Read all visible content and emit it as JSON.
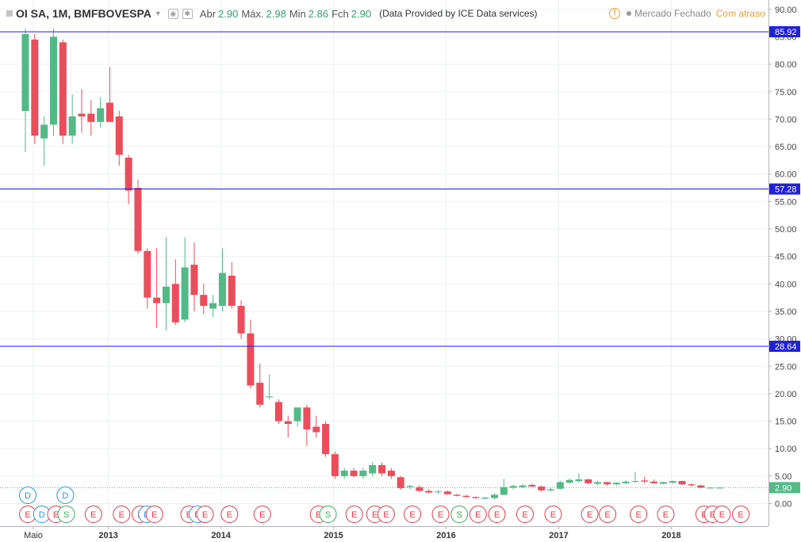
{
  "header": {
    "symbol_title": "OI SA, 1M, BMFBOVESPA",
    "open_label": "Abr",
    "open_value": "2.90",
    "high_label": "Máx.",
    "high_value": "2.98",
    "low_label": "Min",
    "low_value": "2.86",
    "close_label": "Fch",
    "close_value": "2.90",
    "provider": "(Data Provided by ICE Data services)"
  },
  "status": {
    "icon": "!",
    "closed": "Mercado Fechado",
    "delay": "Com atraso"
  },
  "colors": {
    "up": "#53b987",
    "down": "#eb4d5c",
    "hline": "#1a1adb",
    "badge": "#2121d6",
    "last": "#53b987"
  },
  "chart_data": {
    "type": "candlestick",
    "title": "OI SA, 1M, BMFBOVESPA",
    "xlabel": "",
    "ylabel": "",
    "ylim": [
      -3.5,
      91
    ],
    "y_ticks": [
      "0.00",
      "5.00",
      "10.00",
      "15.00",
      "20.00",
      "25.00",
      "30.00",
      "35.00",
      "40.00",
      "45.00",
      "50.00",
      "55.00",
      "60.00",
      "65.00",
      "70.00",
      "75.00",
      "80.00",
      "85.00",
      "90.00"
    ],
    "x_labels": [
      {
        "label": "Maio",
        "index": 0
      },
      {
        "label": "2013",
        "index": 8
      },
      {
        "label": "2014",
        "index": 20
      },
      {
        "label": "2015",
        "index": 32
      },
      {
        "label": "2016",
        "index": 44
      },
      {
        "label": "2017",
        "index": 56
      },
      {
        "label": "2018",
        "index": 68
      }
    ],
    "candles": [
      {
        "o": 71.5,
        "h": 86.5,
        "l": 64.0,
        "c": 85.5
      },
      {
        "o": 84.5,
        "h": 85.5,
        "l": 65.5,
        "c": 67.0
      },
      {
        "o": 66.5,
        "h": 70.5,
        "l": 61.5,
        "c": 69.0
      },
      {
        "o": 69.0,
        "h": 86.5,
        "l": 67.0,
        "c": 85.0
      },
      {
        "o": 84.0,
        "h": 84.5,
        "l": 65.5,
        "c": 67.0
      },
      {
        "o": 67.0,
        "h": 74.5,
        "l": 65.5,
        "c": 70.5
      },
      {
        "o": 71.0,
        "h": 75.5,
        "l": 67.5,
        "c": 70.5
      },
      {
        "o": 71.0,
        "h": 73.5,
        "l": 67.0,
        "c": 69.5
      },
      {
        "o": 69.5,
        "h": 74.0,
        "l": 68.5,
        "c": 72.0
      },
      {
        "o": 73.0,
        "h": 79.5,
        "l": 70.0,
        "c": 69.5
      },
      {
        "o": 70.5,
        "h": 71.5,
        "l": 61.5,
        "c": 63.5
      },
      {
        "o": 63.0,
        "h": 63.5,
        "l": 54.5,
        "c": 57.0
      },
      {
        "o": 57.5,
        "h": 59.0,
        "l": 45.5,
        "c": 46.0
      },
      {
        "o": 46.0,
        "h": 46.5,
        "l": 35.5,
        "c": 37.5
      },
      {
        "o": 37.5,
        "h": 46.5,
        "l": 32.0,
        "c": 36.5
      },
      {
        "o": 36.5,
        "h": 48.5,
        "l": 31.5,
        "c": 39.5
      },
      {
        "o": 40.0,
        "h": 44.5,
        "l": 32.5,
        "c": 33.0
      },
      {
        "o": 33.5,
        "h": 48.5,
        "l": 33.0,
        "c": 43.0
      },
      {
        "o": 43.5,
        "h": 47.5,
        "l": 35.0,
        "c": 38.0
      },
      {
        "o": 38.0,
        "h": 40.0,
        "l": 34.5,
        "c": 36.0
      },
      {
        "o": 35.5,
        "h": 38.0,
        "l": 34.0,
        "c": 36.5
      },
      {
        "o": 36.0,
        "h": 46.5,
        "l": 35.0,
        "c": 42.0
      },
      {
        "o": 41.5,
        "h": 44.0,
        "l": 35.5,
        "c": 36.0
      },
      {
        "o": 36.0,
        "h": 37.0,
        "l": 30.0,
        "c": 31.0
      },
      {
        "o": 31.0,
        "h": 33.5,
        "l": 21.0,
        "c": 21.5
      },
      {
        "o": 22.0,
        "h": 25.5,
        "l": 17.5,
        "c": 18.0
      },
      {
        "o": 19.5,
        "h": 23.5,
        "l": 19.0,
        "c": 19.5
      },
      {
        "o": 18.5,
        "h": 19.0,
        "l": 14.5,
        "c": 15.0
      },
      {
        "o": 15.0,
        "h": 16.0,
        "l": 12.0,
        "c": 14.5
      },
      {
        "o": 15.0,
        "h": 17.5,
        "l": 14.0,
        "c": 17.5
      },
      {
        "o": 17.5,
        "h": 18.0,
        "l": 10.5,
        "c": 13.5
      },
      {
        "o": 14.0,
        "h": 16.0,
        "l": 12.0,
        "c": 13.0
      },
      {
        "o": 14.5,
        "h": 15.0,
        "l": 8.5,
        "c": 9.0
      },
      {
        "o": 9.0,
        "h": 9.5,
        "l": 4.5,
        "c": 5.0
      },
      {
        "o": 5.0,
        "h": 6.5,
        "l": 4.5,
        "c": 6.0
      },
      {
        "o": 6.0,
        "h": 6.5,
        "l": 4.8,
        "c": 5.0
      },
      {
        "o": 5.0,
        "h": 6.5,
        "l": 4.5,
        "c": 6.0
      },
      {
        "o": 5.5,
        "h": 7.5,
        "l": 5.0,
        "c": 7.0
      },
      {
        "o": 7.0,
        "h": 7.5,
        "l": 5.0,
        "c": 5.5
      },
      {
        "o": 6.0,
        "h": 6.5,
        "l": 4.5,
        "c": 5.0
      },
      {
        "o": 4.8,
        "h": 5.0,
        "l": 2.5,
        "c": 2.8
      },
      {
        "o": 3.0,
        "h": 3.5,
        "l": 2.6,
        "c": 3.2
      },
      {
        "o": 3.0,
        "h": 3.3,
        "l": 2.1,
        "c": 2.3
      },
      {
        "o": 2.3,
        "h": 2.6,
        "l": 1.9,
        "c": 2.0
      },
      {
        "o": 2.1,
        "h": 2.5,
        "l": 1.8,
        "c": 2.2
      },
      {
        "o": 2.2,
        "h": 2.4,
        "l": 1.6,
        "c": 1.7
      },
      {
        "o": 1.6,
        "h": 1.8,
        "l": 1.3,
        "c": 1.4
      },
      {
        "o": 1.4,
        "h": 1.6,
        "l": 1.1,
        "c": 1.2
      },
      {
        "o": 1.2,
        "h": 1.3,
        "l": 0.9,
        "c": 1.0
      },
      {
        "o": 0.9,
        "h": 1.2,
        "l": 0.8,
        "c": 1.1
      },
      {
        "o": 1.0,
        "h": 1.9,
        "l": 0.8,
        "c": 1.6
      },
      {
        "o": 1.6,
        "h": 4.5,
        "l": 1.5,
        "c": 3.0
      },
      {
        "o": 2.9,
        "h": 3.4,
        "l": 2.6,
        "c": 3.2
      },
      {
        "o": 3.0,
        "h": 3.6,
        "l": 2.8,
        "c": 3.3
      },
      {
        "o": 3.4,
        "h": 3.6,
        "l": 3.0,
        "c": 3.1
      },
      {
        "o": 3.1,
        "h": 3.3,
        "l": 2.2,
        "c": 2.4
      },
      {
        "o": 2.4,
        "h": 2.9,
        "l": 2.2,
        "c": 2.6
      },
      {
        "o": 2.7,
        "h": 4.2,
        "l": 2.5,
        "c": 3.9
      },
      {
        "o": 3.8,
        "h": 4.6,
        "l": 3.6,
        "c": 4.3
      },
      {
        "o": 4.1,
        "h": 5.5,
        "l": 3.8,
        "c": 4.4
      },
      {
        "o": 4.4,
        "h": 4.5,
        "l": 3.5,
        "c": 3.7
      },
      {
        "o": 3.6,
        "h": 4.2,
        "l": 3.3,
        "c": 3.9
      },
      {
        "o": 3.9,
        "h": 4.0,
        "l": 3.2,
        "c": 3.5
      },
      {
        "o": 3.5,
        "h": 3.9,
        "l": 3.3,
        "c": 3.8
      },
      {
        "o": 3.7,
        "h": 4.3,
        "l": 3.5,
        "c": 4.0
      },
      {
        "o": 4.0,
        "h": 5.8,
        "l": 3.8,
        "c": 4.1
      },
      {
        "o": 4.2,
        "h": 4.9,
        "l": 3.7,
        "c": 4.0
      },
      {
        "o": 4.0,
        "h": 4.4,
        "l": 3.6,
        "c": 3.7
      },
      {
        "o": 3.6,
        "h": 4.0,
        "l": 3.5,
        "c": 3.9
      },
      {
        "o": 3.8,
        "h": 4.2,
        "l": 3.6,
        "c": 4.1
      },
      {
        "o": 4.1,
        "h": 4.2,
        "l": 3.4,
        "c": 3.5
      },
      {
        "o": 3.5,
        "h": 3.7,
        "l": 3.1,
        "c": 3.3
      },
      {
        "o": 3.3,
        "h": 3.4,
        "l": 2.8,
        "c": 2.9
      },
      {
        "o": 2.9,
        "h": 3.0,
        "l": 2.8,
        "c": 2.9
      },
      {
        "o": 2.9,
        "h": 2.98,
        "l": 2.86,
        "c": 2.9
      }
    ],
    "horizontal_lines": [
      {
        "value": 85.92,
        "label": "85.92"
      },
      {
        "value": 57.28,
        "label": "57.28"
      },
      {
        "value": 28.64,
        "label": "28.64"
      }
    ],
    "last_price": {
      "value": 2.9,
      "label": "2.90"
    },
    "event_markers": [
      {
        "index": 0,
        "letter": "D",
        "row": 0
      },
      {
        "index": 4,
        "letter": "D",
        "row": 0
      },
      {
        "index": 0,
        "letter": "E",
        "row": 1
      },
      {
        "index": 1.5,
        "letter": "D",
        "row": 1
      },
      {
        "index": 3,
        "letter": "E",
        "row": 1
      },
      {
        "index": 4.1,
        "letter": "S",
        "row": 1
      },
      {
        "index": 7,
        "letter": "E",
        "row": 1
      },
      {
        "index": 10,
        "letter": "E",
        "row": 1
      },
      {
        "index": 12,
        "letter": "E",
        "row": 1
      },
      {
        "index": 12.7,
        "letter": "D",
        "row": 1
      },
      {
        "index": 13.5,
        "letter": "E",
        "row": 1
      },
      {
        "index": 17.2,
        "letter": "E",
        "row": 1
      },
      {
        "index": 18.1,
        "letter": "D",
        "row": 1
      },
      {
        "index": 18.9,
        "letter": "E",
        "row": 1
      },
      {
        "index": 21.5,
        "letter": "E",
        "row": 1
      },
      {
        "index": 25,
        "letter": "E",
        "row": 1
      },
      {
        "index": 31,
        "letter": "E",
        "row": 1
      },
      {
        "index": 32,
        "letter": "S",
        "row": 1
      },
      {
        "index": 34.8,
        "letter": "E",
        "row": 1
      },
      {
        "index": 37,
        "letter": "E",
        "row": 1
      },
      {
        "index": 38.2,
        "letter": "E",
        "row": 1
      },
      {
        "index": 41,
        "letter": "E",
        "row": 1
      },
      {
        "index": 44,
        "letter": "E",
        "row": 1
      },
      {
        "index": 46,
        "letter": "S",
        "row": 1
      },
      {
        "index": 48,
        "letter": "E",
        "row": 1
      },
      {
        "index": 50,
        "letter": "E",
        "row": 1
      },
      {
        "index": 53,
        "letter": "E",
        "row": 1
      },
      {
        "index": 56,
        "letter": "E",
        "row": 1
      },
      {
        "index": 59.9,
        "letter": "E",
        "row": 1
      },
      {
        "index": 61.8,
        "letter": "E",
        "row": 1
      },
      {
        "index": 65.1,
        "letter": "E",
        "row": 1
      },
      {
        "index": 68,
        "letter": "E",
        "row": 1
      },
      {
        "index": 72.1,
        "letter": "E",
        "row": 1
      },
      {
        "index": 73,
        "letter": "E",
        "row": 1
      },
      {
        "index": 74,
        "letter": "E",
        "row": 1
      },
      {
        "index": 76,
        "letter": "E",
        "row": 1
      }
    ]
  }
}
